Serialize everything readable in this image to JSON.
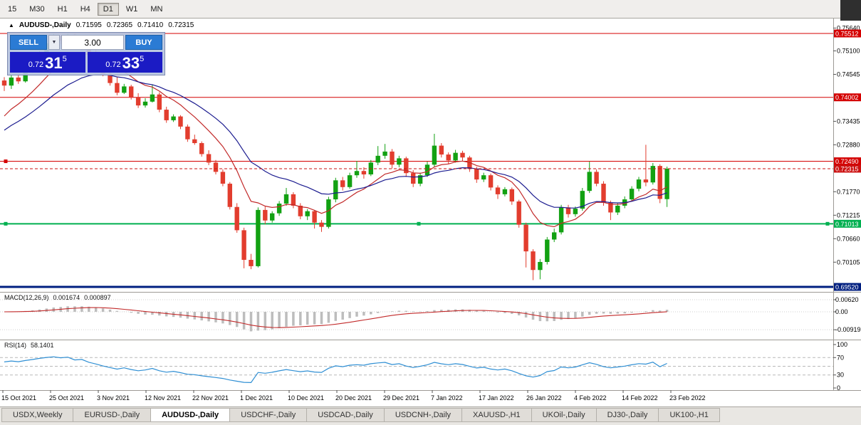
{
  "toolbar": {
    "timeframes": [
      "15",
      "M30",
      "H1",
      "H4",
      "D1",
      "W1",
      "MN"
    ],
    "active": "D1"
  },
  "chart_header": {
    "toggle_icon": "▲",
    "title": "AUDUSD-,Daily",
    "open": "0.71595",
    "high": "0.72365",
    "low": "0.71410",
    "close": "0.72315"
  },
  "one_click": {
    "sell_label": "SELL",
    "buy_label": "BUY",
    "volume": "3.00",
    "bid_prefix": "0.72",
    "bid_big": "31",
    "bid_sup": "5",
    "ask_prefix": "0.72",
    "ask_big": "33",
    "ask_sup": "5"
  },
  "tabs": [
    {
      "label": "USDX,Weekly"
    },
    {
      "label": "EURUSD-,Daily"
    },
    {
      "label": "AUDUSD-,Daily",
      "active": true
    },
    {
      "label": "USDCHF-,Daily"
    },
    {
      "label": "USDCAD-,Daily"
    },
    {
      "label": "USDCNH-,Daily"
    },
    {
      "label": "XAUUSD-,H1"
    },
    {
      "label": "UKOil-,Daily"
    },
    {
      "label": "DJ30-,Daily"
    },
    {
      "label": "UK100-,H1"
    }
  ],
  "chart_data": {
    "type": "candlestick",
    "symbol": "AUDUSD",
    "timeframe": "Daily",
    "x_labels": [
      "15 Oct 2021",
      "25 Oct 2021",
      "3 Nov 2021",
      "12 Nov 2021",
      "22 Nov 2021",
      "1 Dec 2021",
      "10 Dec 2021",
      "20 Dec 2021",
      "29 Dec 2021",
      "7 Jan 2022",
      "17 Jan 2022",
      "26 Jan 2022",
      "4 Feb 2022",
      "14 Feb 2022",
      "23 Feb 2022"
    ],
    "price_axis_ticks": [
      "0.75640",
      "0.75100",
      "0.74545",
      "0.73435",
      "0.72880",
      "0.71770",
      "0.71215",
      "0.70660",
      "0.70105"
    ],
    "hlines": [
      {
        "value": 0.75512,
        "label": "0.75512",
        "color": "#d40000",
        "width": 1
      },
      {
        "value": 0.74002,
        "label": "0.74002",
        "color": "#d40000",
        "width": 1
      },
      {
        "value": 0.7249,
        "label": "0.72490",
        "color": "#d40000",
        "width": 1,
        "handles": "left"
      },
      {
        "value": 0.71013,
        "label": "0.71013",
        "color": "#00b050",
        "width": 2,
        "handles": "three"
      },
      {
        "value": 0.6952,
        "label": "0.69520",
        "color": "#001f80",
        "width": 3
      }
    ],
    "current_price": {
      "value": 0.72315,
      "label": "0.72315",
      "color": "#cc1111"
    },
    "moving_averages": [
      {
        "type": "ema",
        "period": 10,
        "seed": 0.734,
        "color": "#c22a2a"
      },
      {
        "type": "ema",
        "period": 21,
        "seed": 0.7312,
        "color": "#1b1b8f"
      }
    ],
    "candles": [
      [
        0.744,
        0.7448,
        0.7415,
        0.7428
      ],
      [
        0.7428,
        0.7452,
        0.742,
        0.7447
      ],
      [
        0.7447,
        0.7455,
        0.7432,
        0.7438
      ],
      [
        0.7438,
        0.7465,
        0.7435,
        0.7461
      ],
      [
        0.7461,
        0.7488,
        0.7458,
        0.7482
      ],
      [
        0.7482,
        0.751,
        0.7478,
        0.7506
      ],
      [
        0.7506,
        0.7532,
        0.75,
        0.7528
      ],
      [
        0.7528,
        0.755,
        0.7522,
        0.7544
      ],
      [
        0.7544,
        0.7549,
        0.7526,
        0.7534
      ],
      [
        0.7534,
        0.7551,
        0.753,
        0.7548
      ],
      [
        0.7548,
        0.7552,
        0.7515,
        0.7521
      ],
      [
        0.7521,
        0.7538,
        0.7512,
        0.7531
      ],
      [
        0.7531,
        0.7536,
        0.7495,
        0.7501
      ],
      [
        0.7501,
        0.7512,
        0.7475,
        0.7481
      ],
      [
        0.7481,
        0.749,
        0.745,
        0.7456
      ],
      [
        0.7456,
        0.7462,
        0.7428,
        0.7434
      ],
      [
        0.7434,
        0.7448,
        0.7405,
        0.7411
      ],
      [
        0.7411,
        0.7432,
        0.7408,
        0.7426
      ],
      [
        0.7426,
        0.743,
        0.7395,
        0.7401
      ],
      [
        0.7401,
        0.741,
        0.7375,
        0.7381
      ],
      [
        0.7381,
        0.7398,
        0.7376,
        0.739
      ],
      [
        0.739,
        0.743,
        0.7388,
        0.7407
      ],
      [
        0.7407,
        0.7412,
        0.7365,
        0.7371
      ],
      [
        0.7371,
        0.7378,
        0.734,
        0.7346
      ],
      [
        0.7346,
        0.736,
        0.7342,
        0.7355
      ],
      [
        0.7355,
        0.7358,
        0.7325,
        0.7331
      ],
      [
        0.7331,
        0.7336,
        0.7295,
        0.7301
      ],
      [
        0.7301,
        0.7312,
        0.7288,
        0.7292
      ],
      [
        0.7292,
        0.7296,
        0.726,
        0.7266
      ],
      [
        0.7266,
        0.7275,
        0.724,
        0.7246
      ],
      [
        0.7246,
        0.7252,
        0.7218,
        0.7224
      ],
      [
        0.7224,
        0.723,
        0.719,
        0.7196
      ],
      [
        0.7196,
        0.72,
        0.7135,
        0.7141
      ],
      [
        0.7141,
        0.715,
        0.708,
        0.7086
      ],
      [
        0.7086,
        0.7092,
        0.6996,
        0.7016
      ],
      [
        0.7016,
        0.703,
        0.6994,
        0.7001
      ],
      [
        0.7001,
        0.714,
        0.6998,
        0.7134
      ],
      [
        0.7134,
        0.7142,
        0.71,
        0.7109
      ],
      [
        0.7109,
        0.7131,
        0.7104,
        0.7126
      ],
      [
        0.7126,
        0.7155,
        0.712,
        0.7149
      ],
      [
        0.7149,
        0.7186,
        0.7144,
        0.7171
      ],
      [
        0.7171,
        0.7176,
        0.7138,
        0.7144
      ],
      [
        0.7144,
        0.715,
        0.7112,
        0.7119
      ],
      [
        0.7119,
        0.7136,
        0.711,
        0.7131
      ],
      [
        0.7131,
        0.7134,
        0.709,
        0.7104
      ],
      [
        0.7104,
        0.711,
        0.7082,
        0.7094
      ],
      [
        0.7094,
        0.7165,
        0.709,
        0.7159
      ],
      [
        0.7159,
        0.721,
        0.7152,
        0.7204
      ],
      [
        0.7204,
        0.7212,
        0.718,
        0.7188
      ],
      [
        0.7188,
        0.7222,
        0.7184,
        0.7216
      ],
      [
        0.7216,
        0.725,
        0.721,
        0.7226
      ],
      [
        0.7226,
        0.7235,
        0.7208,
        0.7218
      ],
      [
        0.7218,
        0.7252,
        0.7214,
        0.7246
      ],
      [
        0.7246,
        0.7285,
        0.724,
        0.7262
      ],
      [
        0.7262,
        0.729,
        0.7255,
        0.7272
      ],
      [
        0.7272,
        0.7278,
        0.7232,
        0.7241
      ],
      [
        0.7241,
        0.7262,
        0.7235,
        0.7256
      ],
      [
        0.7256,
        0.726,
        0.7212,
        0.7221
      ],
      [
        0.7221,
        0.7228,
        0.7188,
        0.7196
      ],
      [
        0.7196,
        0.7222,
        0.719,
        0.7216
      ],
      [
        0.7216,
        0.7248,
        0.7212,
        0.7241
      ],
      [
        0.7241,
        0.7314,
        0.7236,
        0.7286
      ],
      [
        0.7286,
        0.7292,
        0.7258,
        0.7265
      ],
      [
        0.7265,
        0.727,
        0.7242,
        0.7251
      ],
      [
        0.7251,
        0.7276,
        0.7246,
        0.7269
      ],
      [
        0.7269,
        0.7274,
        0.725,
        0.7258
      ],
      [
        0.7258,
        0.7262,
        0.7224,
        0.7231
      ],
      [
        0.7231,
        0.7236,
        0.7198,
        0.7206
      ],
      [
        0.7206,
        0.7222,
        0.72,
        0.7216
      ],
      [
        0.7216,
        0.722,
        0.718,
        0.7187
      ],
      [
        0.7187,
        0.7192,
        0.716,
        0.7171
      ],
      [
        0.7171,
        0.7188,
        0.7166,
        0.7183
      ],
      [
        0.7183,
        0.7187,
        0.7146,
        0.7154
      ],
      [
        0.7154,
        0.7158,
        0.7092,
        0.7099
      ],
      [
        0.7099,
        0.7104,
        0.6998,
        0.7036
      ],
      [
        0.7036,
        0.7041,
        0.6968,
        0.6992
      ],
      [
        0.6992,
        0.7018,
        0.697,
        0.7011
      ],
      [
        0.7011,
        0.707,
        0.7005,
        0.7064
      ],
      [
        0.7064,
        0.709,
        0.7058,
        0.7081
      ],
      [
        0.7081,
        0.7146,
        0.7076,
        0.714
      ],
      [
        0.714,
        0.7146,
        0.7116,
        0.7124
      ],
      [
        0.7124,
        0.7142,
        0.7118,
        0.7137
      ],
      [
        0.7137,
        0.7186,
        0.7132,
        0.7179
      ],
      [
        0.7179,
        0.7248,
        0.7174,
        0.7224
      ],
      [
        0.7224,
        0.723,
        0.719,
        0.7196
      ],
      [
        0.7196,
        0.7202,
        0.7144,
        0.7151
      ],
      [
        0.7151,
        0.7156,
        0.711,
        0.7128
      ],
      [
        0.7128,
        0.715,
        0.7122,
        0.7144
      ],
      [
        0.7144,
        0.7166,
        0.7138,
        0.7159
      ],
      [
        0.7159,
        0.719,
        0.7154,
        0.7184
      ],
      [
        0.7184,
        0.7212,
        0.7178,
        0.7206
      ],
      [
        0.7206,
        0.7288,
        0.719,
        0.7199
      ],
      [
        0.7199,
        0.7245,
        0.7194,
        0.7238
      ],
      [
        0.7238,
        0.7242,
        0.715,
        0.716
      ],
      [
        0.71595,
        0.72365,
        0.7141,
        0.72315
      ]
    ],
    "macd": {
      "title": "MACD(12,26,9)",
      "value_main": "0.001674",
      "value_signal": "0.000897",
      "fast": 12,
      "slow": 26,
      "signal_period": 9,
      "axis_ticks": [
        "0.00620",
        "0.00",
        "-0.00919"
      ],
      "histogram_color": "#bdbdbd",
      "signal_color": "#c22a2a"
    },
    "rsi": {
      "title": "RSI(14)",
      "value": "58.1401",
      "period": 14,
      "axis_ticks": [
        "100",
        "70",
        "30",
        "0"
      ],
      "levels": [
        70,
        50,
        30
      ],
      "line_color": "#2f8fd4"
    }
  },
  "colors": {
    "up": "#12a112",
    "down": "#e23d2e",
    "background": "#ffffff",
    "axis_text": "#000000"
  }
}
